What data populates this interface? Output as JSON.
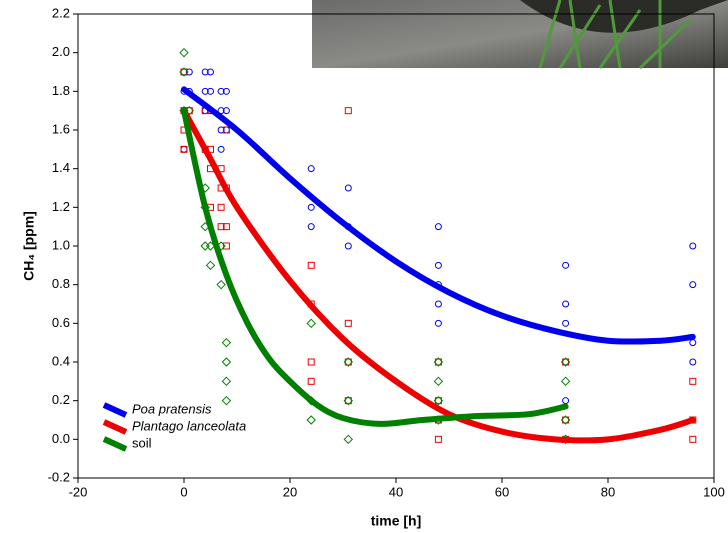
{
  "chart_data": {
    "type": "scatter",
    "x_label": "time [h]",
    "y_label": "CH₄ [ppm]",
    "xlim": [
      -20,
      100
    ],
    "xticks": [
      -20,
      0,
      20,
      40,
      60,
      80,
      100
    ],
    "ylim": [
      -0.2,
      2.2
    ],
    "yticks": [
      -0.2,
      {
        "value": 0,
        "label": "0.0"
      },
      0.2,
      0.4,
      0.6,
      0.8,
      {
        "value": 1,
        "label": "1.0"
      },
      1.2,
      1.4,
      1.6,
      1.8,
      {
        "value": 2,
        "label": "2.0"
      },
      2.2
    ],
    "grid": false,
    "legend": "lower left",
    "series": [
      {
        "name": "Poa pratensis",
        "italic": true,
        "color": "#0000ee",
        "marker": "circle",
        "x": [
          0,
          0,
          0,
          0,
          1,
          1,
          4,
          4,
          4,
          5,
          5,
          5,
          7,
          7,
          7,
          7,
          8,
          8,
          8,
          24,
          24,
          24,
          31,
          31,
          31,
          48,
          48,
          48,
          48,
          48,
          72,
          72,
          72,
          72,
          72,
          96,
          96,
          96,
          96
        ],
        "values": [
          1.9,
          1.8,
          1.7,
          1.5,
          1.9,
          1.8,
          1.9,
          1.8,
          1.7,
          1.9,
          1.8,
          1.7,
          1.8,
          1.7,
          1.6,
          1.5,
          1.8,
          1.7,
          1.6,
          1.4,
          1.2,
          1.1,
          1.3,
          1.1,
          1.0,
          1.1,
          0.9,
          0.8,
          0.7,
          0.6,
          0.9,
          0.7,
          0.6,
          0.4,
          0.2,
          1.0,
          0.8,
          0.5,
          0.4
        ],
        "fit": {
          "x": [
            0,
            10,
            20,
            30,
            40,
            50,
            60,
            70,
            80,
            90,
            96
          ],
          "values": [
            1.81,
            1.6,
            1.35,
            1.12,
            0.92,
            0.76,
            0.64,
            0.56,
            0.51,
            0.51,
            0.53
          ]
        }
      },
      {
        "name": "Plantago lanceolata",
        "italic": true,
        "color": "#ee0000",
        "marker": "square",
        "x": [
          0,
          0,
          0,
          0,
          1,
          4,
          4,
          5,
          5,
          5,
          7,
          7,
          7,
          7,
          8,
          8,
          8,
          8,
          24,
          24,
          24,
          24,
          31,
          31,
          31,
          31,
          48,
          48,
          48,
          48,
          72,
          72,
          72,
          96,
          96,
          96
        ],
        "values": [
          1.9,
          1.7,
          1.6,
          1.5,
          1.7,
          1.7,
          1.5,
          1.5,
          1.4,
          1.2,
          1.4,
          1.3,
          1.2,
          1.1,
          1.6,
          1.3,
          1.1,
          1.0,
          0.9,
          0.7,
          0.4,
          0.3,
          1.7,
          0.6,
          0.4,
          0.2,
          0.4,
          0.2,
          0.1,
          0.0,
          0.4,
          0.1,
          0.0,
          0.3,
          0.1,
          0.0
        ],
        "fit": {
          "x": [
            0,
            5,
            10,
            20,
            30,
            40,
            50,
            60,
            70,
            80,
            90,
            96
          ],
          "values": [
            1.7,
            1.45,
            1.2,
            0.82,
            0.52,
            0.3,
            0.13,
            0.04,
            0.0,
            0.0,
            0.05,
            0.1
          ]
        }
      },
      {
        "name": "soil",
        "italic": false,
        "color": "#008000",
        "marker": "diamond",
        "x": [
          0,
          0,
          0,
          1,
          4,
          4,
          4,
          4,
          5,
          5,
          7,
          7,
          8,
          8,
          8,
          8,
          24,
          24,
          24,
          31,
          31,
          31,
          48,
          48,
          48,
          48,
          72,
          72,
          72,
          72
        ],
        "values": [
          2.0,
          1.9,
          1.7,
          1.7,
          1.3,
          1.2,
          1.1,
          1.0,
          1.0,
          0.9,
          1.0,
          0.8,
          0.5,
          0.4,
          0.3,
          0.2,
          0.6,
          0.2,
          0.1,
          0.4,
          0.2,
          0.0,
          0.4,
          0.3,
          0.2,
          0.1,
          0.4,
          0.3,
          0.1,
          0.0
        ],
        "fit": {
          "x": [
            0,
            4,
            8,
            12,
            16,
            20,
            25,
            30,
            37,
            45,
            55,
            65,
            72
          ],
          "values": [
            1.7,
            1.2,
            0.85,
            0.6,
            0.42,
            0.3,
            0.18,
            0.11,
            0.08,
            0.1,
            0.12,
            0.13,
            0.17
          ]
        }
      }
    ]
  }
}
